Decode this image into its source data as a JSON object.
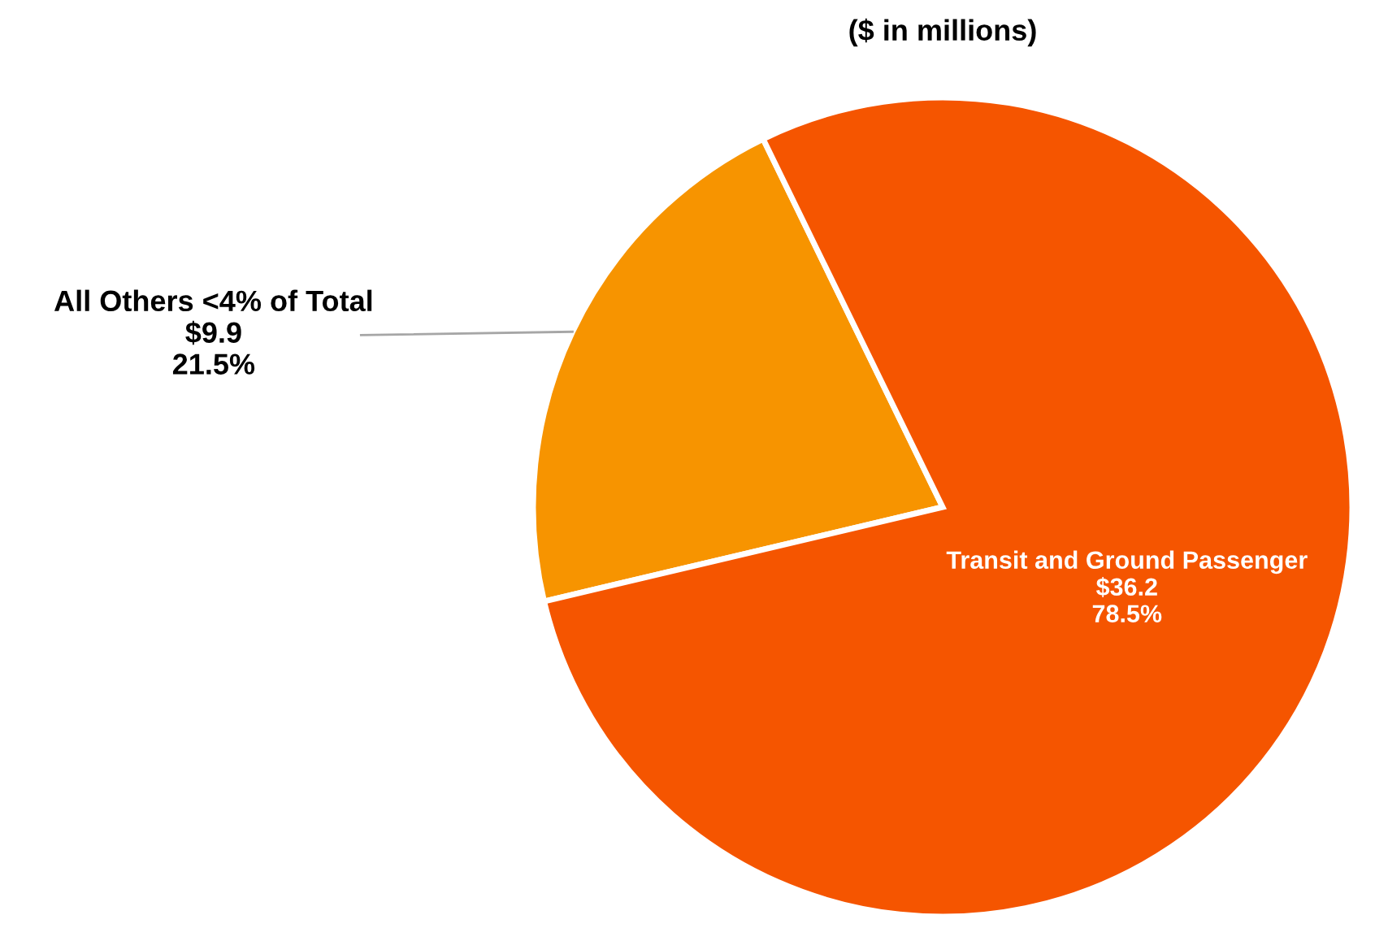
{
  "chart_data": {
    "type": "pie",
    "title": "($ in millions)",
    "categories": [
      "All Others <4% of Total",
      "Transit and Ground Passenger"
    ],
    "values": [
      9.9,
      36.2
    ],
    "colors": [
      "#f79400",
      "#f55500"
    ],
    "value_labels": [
      "$9.9\n21.5%",
      "$36.2\n78.5%"
    ],
    "legend": false
  }
}
